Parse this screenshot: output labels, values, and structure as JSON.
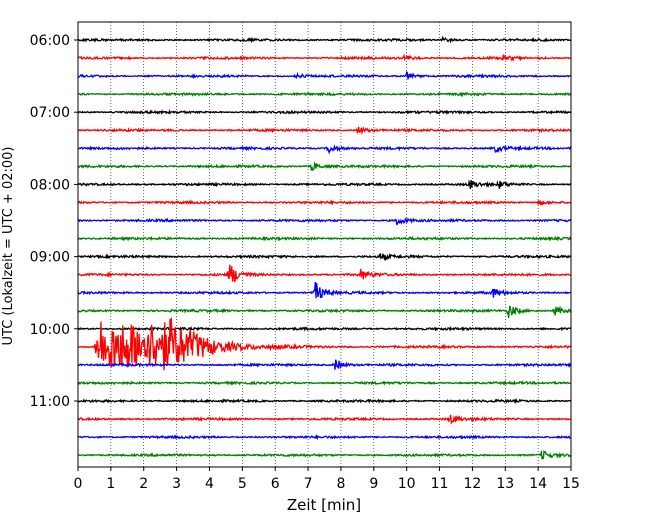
{
  "chart_data": {
    "type": "line",
    "subtype": "helicorder",
    "title": "",
    "xlabel": "Zeit  [min]",
    "ylabel": "UTC (Lokalzeit = UTC + 02:00)",
    "xlim": [
      0,
      15
    ],
    "x_ticks": [
      "0",
      "1",
      "2",
      "3",
      "4",
      "5",
      "6",
      "7",
      "8",
      "9",
      "10",
      "11",
      "12",
      "13",
      "14",
      "15"
    ],
    "y_tick_labels": [
      "06:00",
      "07:00",
      "08:00",
      "09:00",
      "10:00",
      "11:00"
    ],
    "grid": "vertical dotted at each minute",
    "trace_interval_minutes": 15,
    "start_time": "06:00",
    "trace_count": 24,
    "trace_colors": [
      "#000000",
      "#ff0000",
      "#0000ff",
      "#008000"
    ],
    "events": [
      {
        "trace_start": "06:00",
        "minute": 11.1,
        "amplitude": 0.5
      },
      {
        "trace_start": "06:15",
        "minute": 9.9,
        "amplitude": 0.5
      },
      {
        "trace_start": "06:15",
        "minute": 12.9,
        "amplitude": 0.5
      },
      {
        "trace_start": "06:30",
        "minute": 6.6,
        "amplitude": 0.45
      },
      {
        "trace_start": "06:30",
        "minute": 10.0,
        "amplitude": 0.7
      },
      {
        "trace_start": "07:15",
        "minute": 8.5,
        "amplitude": 0.7
      },
      {
        "trace_start": "07:30",
        "minute": 7.6,
        "amplitude": 0.9
      },
      {
        "trace_start": "07:30",
        "minute": 12.7,
        "amplitude": 0.6
      },
      {
        "trace_start": "07:45",
        "minute": 7.1,
        "amplitude": 0.8
      },
      {
        "trace_start": "08:00",
        "minute": 11.9,
        "amplitude": 0.8
      },
      {
        "trace_start": "08:00",
        "minute": 12.8,
        "amplitude": 0.6
      },
      {
        "trace_start": "08:15",
        "minute": 14.0,
        "amplitude": 0.5
      },
      {
        "trace_start": "08:30",
        "minute": 9.7,
        "amplitude": 0.8
      },
      {
        "trace_start": "09:00",
        "minute": 9.2,
        "amplitude": 0.5
      },
      {
        "trace_start": "09:15",
        "minute": 4.6,
        "amplitude": 2.2
      },
      {
        "trace_start": "09:15",
        "minute": 8.6,
        "amplitude": 0.9
      },
      {
        "trace_start": "09:30",
        "minute": 7.2,
        "amplitude": 2.0
      },
      {
        "trace_start": "09:30",
        "minute": 12.6,
        "amplitude": 0.8
      },
      {
        "trace_start": "09:45",
        "minute": 13.1,
        "amplitude": 1.2
      },
      {
        "trace_start": "09:45",
        "minute": 14.5,
        "amplitude": 0.8
      },
      {
        "trace_start": "10:30",
        "minute": 7.8,
        "amplitude": 1.0
      },
      {
        "trace_start": "11:15",
        "minute": 11.3,
        "amplitude": 0.9
      },
      {
        "trace_start": "11:45",
        "minute": 14.1,
        "amplitude": 0.8
      }
    ],
    "large_event": {
      "trace_start": "10:15",
      "onset_minute": 0.5,
      "peak_minute": 2.0,
      "duration_minutes": 5,
      "amplitude": 5.0
    }
  }
}
